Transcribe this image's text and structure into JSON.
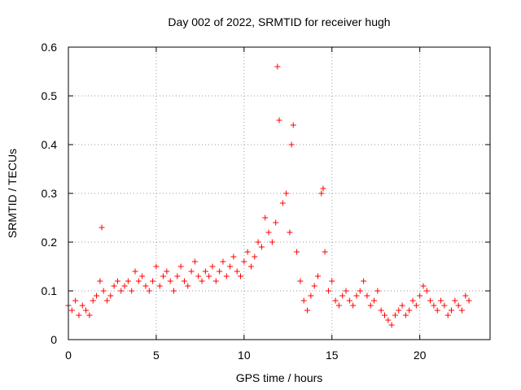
{
  "chart_data": {
    "type": "scatter",
    "title": "Day 002 of 2022, SRMTID for receiver hugh",
    "xlabel": "GPS time / hours",
    "ylabel": "SRMTID / TECUs",
    "xlim": [
      0,
      24
    ],
    "ylim": [
      0,
      0.6
    ],
    "x_ticks": [
      0,
      5,
      10,
      15,
      20
    ],
    "x_tick_labels": [
      "0",
      "5",
      "10",
      "15",
      "20"
    ],
    "y_ticks": [
      0,
      0.1,
      0.2,
      0.3,
      0.4,
      0.5,
      0.6
    ],
    "y_tick_labels": [
      "0",
      "0.1",
      "0.2",
      "0.3",
      "0.4",
      "0.5",
      "0.6"
    ],
    "grid": true,
    "marker": "+",
    "marker_color": "#ff0000",
    "series": [
      {
        "name": "SRMTID",
        "x": [
          0.0,
          0.2,
          0.4,
          0.6,
          0.8,
          1.0,
          1.2,
          1.4,
          1.6,
          1.8,
          1.9,
          2.0,
          2.2,
          2.4,
          2.6,
          2.8,
          3.0,
          3.2,
          3.4,
          3.6,
          3.8,
          4.0,
          4.2,
          4.4,
          4.6,
          4.8,
          5.0,
          5.2,
          5.4,
          5.6,
          5.8,
          6.0,
          6.2,
          6.4,
          6.6,
          6.8,
          7.0,
          7.2,
          7.4,
          7.6,
          7.8,
          8.0,
          8.2,
          8.4,
          8.6,
          8.8,
          9.0,
          9.2,
          9.4,
          9.6,
          9.8,
          10.0,
          10.2,
          10.4,
          10.6,
          10.8,
          11.0,
          11.2,
          11.4,
          11.6,
          11.8,
          11.9,
          12.0,
          12.2,
          12.4,
          12.6,
          12.7,
          12.8,
          13.0,
          13.2,
          13.4,
          13.6,
          13.8,
          14.0,
          14.2,
          14.4,
          14.5,
          14.6,
          14.8,
          15.0,
          15.2,
          15.4,
          15.6,
          15.8,
          16.0,
          16.2,
          16.4,
          16.6,
          16.8,
          17.0,
          17.2,
          17.4,
          17.6,
          17.8,
          18.0,
          18.2,
          18.4,
          18.6,
          18.8,
          19.0,
          19.2,
          19.4,
          19.6,
          19.8,
          20.0,
          20.2,
          20.4,
          20.6,
          20.8,
          21.0,
          21.2,
          21.4,
          21.6,
          21.8,
          22.0,
          22.2,
          22.4,
          22.6,
          22.8
        ],
        "y": [
          0.07,
          0.06,
          0.08,
          0.05,
          0.07,
          0.06,
          0.05,
          0.08,
          0.09,
          0.12,
          0.23,
          0.1,
          0.08,
          0.09,
          0.11,
          0.12,
          0.1,
          0.11,
          0.12,
          0.1,
          0.14,
          0.12,
          0.13,
          0.11,
          0.1,
          0.12,
          0.15,
          0.11,
          0.13,
          0.14,
          0.12,
          0.1,
          0.13,
          0.15,
          0.12,
          0.11,
          0.14,
          0.16,
          0.13,
          0.12,
          0.14,
          0.13,
          0.15,
          0.12,
          0.14,
          0.16,
          0.13,
          0.15,
          0.17,
          0.14,
          0.13,
          0.16,
          0.18,
          0.15,
          0.17,
          0.2,
          0.19,
          0.25,
          0.22,
          0.2,
          0.24,
          0.56,
          0.45,
          0.28,
          0.3,
          0.22,
          0.4,
          0.44,
          0.18,
          0.12,
          0.08,
          0.06,
          0.09,
          0.11,
          0.13,
          0.3,
          0.31,
          0.18,
          0.1,
          0.12,
          0.08,
          0.07,
          0.09,
          0.1,
          0.08,
          0.07,
          0.09,
          0.1,
          0.12,
          0.09,
          0.07,
          0.08,
          0.1,
          0.06,
          0.05,
          0.04,
          0.03,
          0.05,
          0.06,
          0.07,
          0.05,
          0.06,
          0.08,
          0.07,
          0.09,
          0.11,
          0.1,
          0.08,
          0.07,
          0.06,
          0.08,
          0.07,
          0.05,
          0.06,
          0.08,
          0.07,
          0.06,
          0.09,
          0.08
        ]
      }
    ]
  }
}
